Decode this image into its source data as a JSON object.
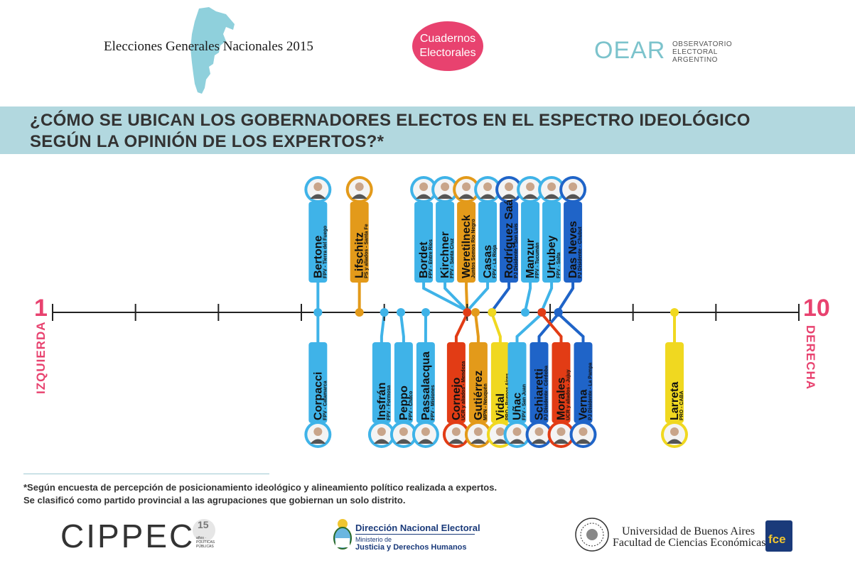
{
  "header": {
    "title": "Elecciones Generales Nacionales 2015",
    "badge_line1": "Cuadernos",
    "badge_line2": "Electorales",
    "oear_word": "OEAR",
    "oear_sub": [
      "OBSERVATORIO",
      "ELECTORAL",
      "ARGENTINO"
    ]
  },
  "banner": {
    "line1": "¿CÓMO SE UBICAN LOS GOBERNADORES ELECTOS EN EL ESPECTRO IDEOLÓGICO",
    "line2": "SEGÚN LA OPINIÓN DE LOS EXPERTOS?*"
  },
  "scale": {
    "left_number": "1",
    "right_number": "10",
    "left_label": "IZQUIERDA",
    "right_label": "DERECHA",
    "accent_color": "#e8426f"
  },
  "colors": {
    "FPV": "#3fb3e8",
    "PS y aliados": "#e39a1a",
    "Juntos Somos Río Negro": "#e39a1a",
    "MPN": "#e39a1a",
    "PJ Disidente": "#1f64c8",
    "UCR y aliados": "#e23c15",
    "PRO": "#f0d820"
  },
  "chart_data": {
    "type": "scatter",
    "title": "¿CÓMO SE UBICAN LOS GOBERNADORES ELECTOS EN EL ESPECTRO IDEOLÓGICO SEGÚN LA OPINIÓN DE LOS EXPERTOS?*",
    "xlabel": "",
    "ylabel": "",
    "xlim": [
      1,
      10
    ],
    "above": [
      {
        "name": "Bertone",
        "sub": "FPV - Tierra del Fuego",
        "party": "FPV",
        "x": 4.2
      },
      {
        "name": "Lifschitz",
        "sub": "PS y aliados - Santa Fe",
        "party": "PS y aliados",
        "x": 4.7
      },
      {
        "name": "Bordet",
        "sub": "FPV - Entre Ríos",
        "party": "FPV",
        "x": 6.0
      },
      {
        "name": "Kirchner",
        "sub": "FPV - Santa Cruz",
        "party": "FPV",
        "x": 6.0
      },
      {
        "name": "Weretilneck",
        "sub": "Juntos Somos Río Negro",
        "party": "Juntos Somos Río Negro",
        "x": 6.0
      },
      {
        "name": "Casas",
        "sub": "FPV - La Rioja",
        "party": "FPV",
        "x": 6.0
      },
      {
        "name": "Rodríguez Saá",
        "sub": "PJ Disidente - San Luis",
        "party": "PJ Disidente",
        "x": 6.3
      },
      {
        "name": "Manzur",
        "sub": "FPV - Tucumán",
        "party": "FPV",
        "x": 6.7
      },
      {
        "name": "Urtubey",
        "sub": "FPV - Salta",
        "party": "FPV",
        "x": 6.9
      },
      {
        "name": "Das Neves",
        "sub": "PJ Disidente - Chubut",
        "party": "PJ Disidente",
        "x": 7.1
      }
    ],
    "below": [
      {
        "name": "Corpacci",
        "sub": "FPV - Catamarca",
        "party": "FPV",
        "x": 4.2
      },
      {
        "name": "Insfrán",
        "sub": "FPV - Formosa",
        "party": "FPV",
        "x": 5.0
      },
      {
        "name": "Peppo",
        "sub": "FPV - Chaco",
        "party": "FPV",
        "x": 5.2
      },
      {
        "name": "Passalacqua",
        "sub": "FPV - Misiones",
        "party": "FPV",
        "x": 5.5
      },
      {
        "name": "Cornejo",
        "sub": "UCR y aliados - Mendoza",
        "party": "UCR y aliados",
        "x": 6.0
      },
      {
        "name": "Gutiérrez",
        "sub": "MPN - Neuquén",
        "party": "MPN",
        "x": 6.1
      },
      {
        "name": "Vidal",
        "sub": "PRO - Buenos Aires",
        "party": "PRO",
        "x": 6.3
      },
      {
        "name": "Uñac",
        "sub": "FPV - San Juan",
        "party": "FPV",
        "x": 6.9
      },
      {
        "name": "Schiaretti",
        "sub": "PJ Disidente - Córdoba",
        "party": "PJ Disidente",
        "x": 7.1
      },
      {
        "name": "Morales",
        "sub": "UCR y aliados - Jujuy",
        "party": "UCR y aliados",
        "x": 6.9
      },
      {
        "name": "Verna",
        "sub": "PJ Disidente - La Pampa",
        "party": "PJ Disidente",
        "x": 7.1
      },
      {
        "name": "Larreta",
        "sub": "PRO - CABA",
        "party": "PRO",
        "x": 8.5
      }
    ]
  },
  "footnote": {
    "line1": "*Según encuesta de percepción de posicionamiento ideológico y alineamiento político realizada a expertos.",
    "line2": "Se clasificó como partido provincial a las agrupaciones que gobiernan un solo distrito."
  },
  "logos": {
    "cippec": "CIPPEC",
    "cippec_years": "15",
    "cippec_sub": "años · POLÍTICAS PÚBLICAS",
    "dne_title": "Dirección Nacional Electoral",
    "dne_sub1": "Ministerio de",
    "dne_sub2": "Justicia y Derechos Humanos",
    "uba_line1": "Universidad de Buenos Aires",
    "uba_line2": "Facultad de Ciencias Económicas",
    "fce": "fce"
  }
}
